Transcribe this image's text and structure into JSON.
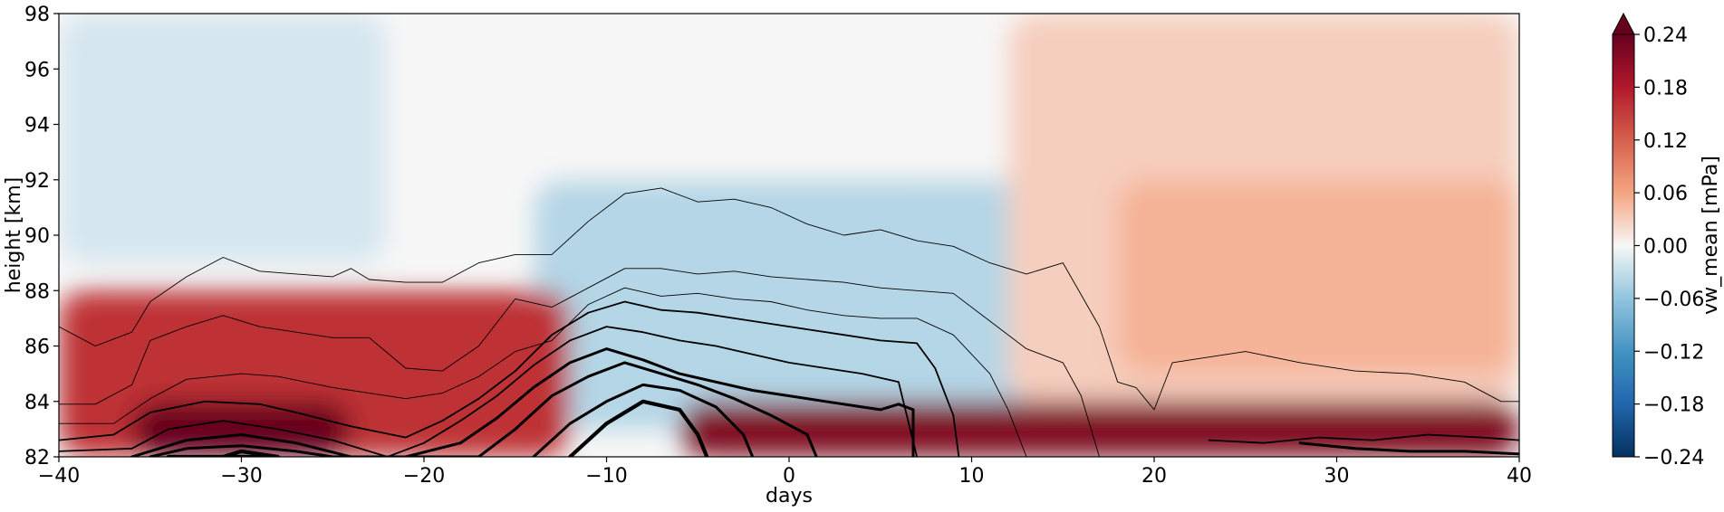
{
  "chart_data": {
    "type": "heatmap",
    "title": "",
    "xlabel": "days",
    "ylabel": "height [km]",
    "xlim": [
      -40,
      40
    ],
    "ylim": [
      82,
      98
    ],
    "xticks": [
      -40,
      -30,
      -20,
      -10,
      0,
      10,
      20,
      30,
      40
    ],
    "xtick_labels": [
      "−40",
      "−30",
      "−20",
      "−10",
      "0",
      "10",
      "20",
      "30",
      "40"
    ],
    "yticks": [
      82,
      84,
      86,
      88,
      90,
      92,
      94,
      96,
      98
    ],
    "ytick_labels": [
      "82",
      "84",
      "86",
      "88",
      "90",
      "92",
      "94",
      "96",
      "98"
    ],
    "colorbar": {
      "label": "vw_mean [mPa]",
      "range": [
        -0.24,
        0.24
      ],
      "extend": "max",
      "colormap": "RdBu_r",
      "ticks": [
        -0.24,
        -0.18,
        -0.12,
        -0.06,
        0.0,
        0.06,
        0.12,
        0.18,
        0.24
      ],
      "tick_labels": [
        "−0.24",
        "−0.18",
        "−0.12",
        "−0.06",
        "0.00",
        "0.06",
        "0.12",
        "0.18",
        "0.24"
      ]
    },
    "field_regions": [
      {
        "name": "upper-neutral",
        "days": [
          -40,
          40
        ],
        "height": [
          89,
          98
        ],
        "value": 0.0
      },
      {
        "name": "upper-left-negative",
        "days": [
          -40,
          -22
        ],
        "height": [
          89,
          98
        ],
        "value": -0.02
      },
      {
        "name": "central-negative-core",
        "days": [
          -8,
          8
        ],
        "height": [
          84,
          92
        ],
        "value": -0.08
      },
      {
        "name": "central-negative-halo",
        "days": [
          -14,
          16
        ],
        "height": [
          83,
          92
        ],
        "value": -0.04
      },
      {
        "name": "upper-right-positive",
        "days": [
          12,
          40
        ],
        "height": [
          84,
          98
        ],
        "value": 0.03
      },
      {
        "name": "upper-right-core",
        "days": [
          18,
          40
        ],
        "height": [
          85,
          92
        ],
        "value": 0.05
      },
      {
        "name": "lower-left-positive",
        "days": [
          -40,
          -12
        ],
        "height": [
          82,
          88
        ],
        "value": 0.16
      },
      {
        "name": "lower-left-core",
        "days": [
          -36,
          -24
        ],
        "height": [
          82,
          84
        ],
        "value": 0.24
      },
      {
        "name": "bottom-right-positive",
        "days": [
          -6,
          40
        ],
        "height": [
          82,
          84
        ],
        "value": 0.22
      }
    ],
    "contour_lines": [
      {
        "level": 1,
        "weight": "thin",
        "points": [
          [
            -40,
            86.7
          ],
          [
            -38,
            86
          ],
          [
            -36,
            86.5
          ],
          [
            -35,
            87.6
          ],
          [
            -33,
            88.5
          ],
          [
            -31,
            89.2
          ],
          [
            -29,
            88.7
          ],
          [
            -27,
            88.6
          ],
          [
            -25,
            88.5
          ],
          [
            -24,
            88.8
          ],
          [
            -23,
            88.4
          ],
          [
            -21,
            88.3
          ],
          [
            -19,
            88.3
          ],
          [
            -17,
            89
          ],
          [
            -15,
            89.3
          ],
          [
            -13,
            89.3
          ],
          [
            -11,
            90.5
          ],
          [
            -9,
            91.5
          ],
          [
            -7,
            91.7
          ],
          [
            -5,
            91.2
          ],
          [
            -3,
            91.3
          ],
          [
            -1,
            91
          ],
          [
            1,
            90.4
          ],
          [
            3,
            90
          ],
          [
            5,
            90.2
          ],
          [
            7,
            89.8
          ],
          [
            9,
            89.6
          ],
          [
            11,
            89
          ],
          [
            13,
            88.6
          ],
          [
            15,
            89
          ],
          [
            17,
            86.7
          ],
          [
            18,
            84.7
          ],
          [
            19,
            84.5
          ],
          [
            20,
            83.7
          ],
          [
            21,
            85.4
          ],
          [
            25,
            85.8
          ],
          [
            28,
            85.4
          ],
          [
            31,
            85.1
          ],
          [
            34,
            85
          ],
          [
            37,
            84.7
          ],
          [
            39,
            84
          ],
          [
            40,
            84
          ]
        ]
      },
      {
        "level": 2,
        "weight": "thin",
        "points": [
          [
            -40,
            83.9
          ],
          [
            -38,
            83.9
          ],
          [
            -36,
            84.6
          ],
          [
            -35,
            86.2
          ],
          [
            -33,
            86.7
          ],
          [
            -31,
            87.1
          ],
          [
            -29,
            86.7
          ],
          [
            -27,
            86.5
          ],
          [
            -25,
            86.3
          ],
          [
            -23,
            86.3
          ],
          [
            -21,
            85.2
          ],
          [
            -19,
            85.1
          ],
          [
            -17,
            86
          ],
          [
            -15,
            87.7
          ],
          [
            -13,
            87.4
          ],
          [
            -11,
            88.1
          ],
          [
            -9,
            88.8
          ],
          [
            -7,
            88.8
          ],
          [
            -5,
            88.6
          ],
          [
            -3,
            88.7
          ],
          [
            -1,
            88.5
          ],
          [
            1,
            88.4
          ],
          [
            3,
            88.3
          ],
          [
            5,
            88.1
          ],
          [
            7,
            88
          ],
          [
            9,
            87.9
          ],
          [
            11,
            86.9
          ],
          [
            13,
            85.9
          ],
          [
            15,
            85.4
          ],
          [
            16,
            84.2
          ],
          [
            17,
            82
          ]
        ]
      },
      {
        "level": 3,
        "weight": "thin",
        "points": [
          [
            -40,
            83.2
          ],
          [
            -37,
            83.2
          ],
          [
            -35,
            84.1
          ],
          [
            -33,
            84.8
          ],
          [
            -30,
            85
          ],
          [
            -28,
            84.9
          ],
          [
            -25,
            84.5
          ],
          [
            -23,
            84.3
          ],
          [
            -21,
            84.1
          ],
          [
            -19,
            84.3
          ],
          [
            -17,
            84.9
          ],
          [
            -15,
            85.8
          ],
          [
            -13,
            86.2
          ],
          [
            -11,
            87.5
          ],
          [
            -9,
            88.1
          ],
          [
            -7,
            87.8
          ],
          [
            -5,
            87.9
          ],
          [
            -3,
            87.7
          ],
          [
            -1,
            87.6
          ],
          [
            1,
            87.3
          ],
          [
            3,
            87.1
          ],
          [
            5,
            87
          ],
          [
            7,
            87
          ],
          [
            9,
            86.4
          ],
          [
            11,
            85
          ],
          [
            12,
            83.7
          ],
          [
            13,
            82
          ]
        ]
      },
      {
        "level": 4,
        "weight": "medium",
        "points": [
          [
            -40,
            82.6
          ],
          [
            -37,
            82.8
          ],
          [
            -35,
            83.6
          ],
          [
            -32,
            84
          ],
          [
            -29,
            83.9
          ],
          [
            -27,
            83.6
          ],
          [
            -24,
            83.1
          ],
          [
            -21,
            82.7
          ],
          [
            -19,
            83.3
          ],
          [
            -17,
            84.1
          ],
          [
            -15,
            85.1
          ],
          [
            -13,
            86.4
          ],
          [
            -11,
            87.2
          ],
          [
            -9,
            87.6
          ],
          [
            -7,
            87.3
          ],
          [
            -5,
            87.2
          ],
          [
            -3,
            87
          ],
          [
            -1,
            86.8
          ],
          [
            1,
            86.6
          ],
          [
            3,
            86.4
          ],
          [
            5,
            86.2
          ],
          [
            7,
            86.1
          ],
          [
            8,
            85.2
          ],
          [
            9,
            83.5
          ],
          [
            9.3,
            82
          ]
        ]
      },
      {
        "level": 5,
        "weight": "medium",
        "points": [
          [
            -40,
            82.2
          ],
          [
            -36,
            82.3
          ],
          [
            -34,
            83
          ],
          [
            -31,
            83.3
          ],
          [
            -28,
            83
          ],
          [
            -25,
            82.6
          ],
          [
            -22,
            82
          ],
          [
            -20,
            82.5
          ],
          [
            -18,
            83.3
          ],
          [
            -16,
            84.2
          ],
          [
            -14,
            85.3
          ],
          [
            -12,
            86.2
          ],
          [
            -10,
            86.7
          ],
          [
            -8,
            86.5
          ],
          [
            -6,
            86.2
          ],
          [
            -4,
            86
          ],
          [
            -2,
            85.7
          ],
          [
            0,
            85.4
          ],
          [
            2,
            85.2
          ],
          [
            4,
            85
          ],
          [
            6,
            84.7
          ],
          [
            7,
            82
          ]
        ]
      },
      {
        "level": 6,
        "weight": "thick",
        "points": [
          [
            -36,
            82
          ],
          [
            -33,
            82.6
          ],
          [
            -30,
            82.8
          ],
          [
            -27,
            82.5
          ],
          [
            -24,
            82
          ],
          [
            -21,
            82
          ],
          [
            -18,
            82.5
          ],
          [
            -16,
            83.4
          ],
          [
            -14,
            84.5
          ],
          [
            -12,
            85.4
          ],
          [
            -10,
            85.9
          ],
          [
            -8,
            85.5
          ],
          [
            -6,
            85
          ],
          [
            -4,
            84.7
          ],
          [
            -2,
            84.4
          ],
          [
            0,
            84.2
          ],
          [
            2,
            84
          ],
          [
            4,
            83.8
          ],
          [
            5,
            83.7
          ],
          [
            6,
            83.9
          ],
          [
            6.8,
            83.7
          ],
          [
            6.8,
            82
          ]
        ]
      },
      {
        "level": 7,
        "weight": "thick",
        "points": [
          [
            -35,
            82
          ],
          [
            -33,
            82.3
          ],
          [
            -30,
            82.4
          ],
          [
            -27,
            82.2
          ],
          [
            -25,
            82
          ],
          [
            -17,
            82
          ],
          [
            -15,
            83
          ],
          [
            -13,
            84.2
          ],
          [
            -11,
            84.9
          ],
          [
            -9,
            85.4
          ],
          [
            -7,
            85
          ],
          [
            -5,
            84.6
          ],
          [
            -3,
            84.1
          ],
          [
            -1,
            83.5
          ],
          [
            1,
            82.8
          ],
          [
            1.5,
            82
          ]
        ]
      },
      {
        "level": 8,
        "weight": "thick",
        "points": [
          [
            -14,
            82
          ],
          [
            -12,
            83.2
          ],
          [
            -10,
            84
          ],
          [
            -8,
            84.6
          ],
          [
            -6,
            84.4
          ],
          [
            -4,
            83.8
          ],
          [
            -2.5,
            82.8
          ],
          [
            -2,
            82
          ]
        ]
      },
      {
        "level": 9,
        "weight": "extra",
        "points": [
          [
            -12,
            82
          ],
          [
            -10,
            83.2
          ],
          [
            -8,
            84
          ],
          [
            -6,
            83.7
          ],
          [
            -5,
            82.8
          ],
          [
            -4.5,
            82
          ]
        ]
      },
      {
        "level": 10,
        "weight": "extra",
        "points": [
          [
            -31,
            82
          ],
          [
            -30,
            82.2
          ],
          [
            -28,
            82
          ],
          [
            -34,
            82
          ]
        ]
      },
      {
        "level": 11,
        "weight": "thick",
        "points": [
          [
            28,
            82.5
          ],
          [
            31,
            82.3
          ],
          [
            34,
            82.2
          ],
          [
            37,
            82.2
          ],
          [
            40,
            82.1
          ]
        ]
      },
      {
        "level": 12,
        "weight": "medium",
        "points": [
          [
            23,
            82.6
          ],
          [
            26,
            82.5
          ],
          [
            29,
            82.7
          ],
          [
            32,
            82.6
          ],
          [
            35,
            82.8
          ],
          [
            38,
            82.7
          ],
          [
            40,
            82.6
          ]
        ]
      }
    ]
  }
}
